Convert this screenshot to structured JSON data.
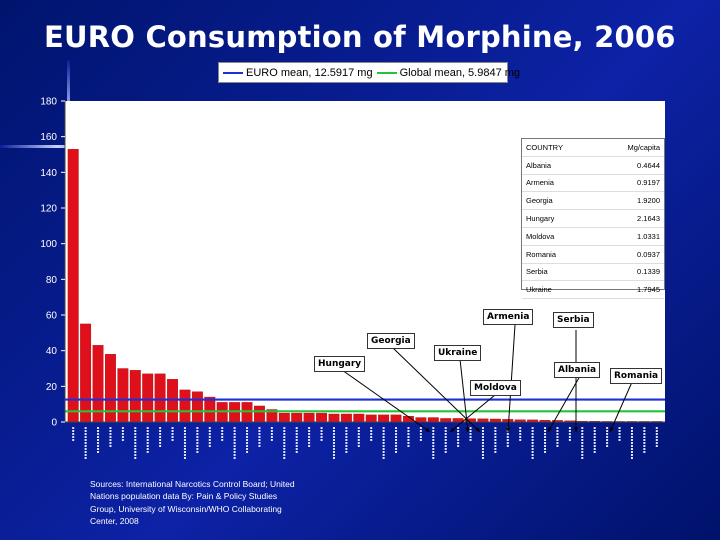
{
  "title": "EURO Consumption of Morphine, 2006",
  "legend": {
    "euro_label": "EURO mean, 12.5917 mg",
    "global_label": "Global mean, 5.9847 mg",
    "euro_color": "#1f2fd6",
    "global_color": "#22c43a"
  },
  "chart_data": {
    "type": "bar",
    "title": "EURO Consumption of Morphine, 2006",
    "xlabel": "",
    "ylabel": "",
    "ylim": [
      0,
      180
    ],
    "yticks": [
      0,
      20,
      40,
      60,
      80,
      100,
      120,
      140,
      160,
      180
    ],
    "grid": false,
    "bar_color": "#e0101a",
    "values": [
      153,
      55,
      43,
      38,
      30,
      29,
      27,
      27,
      24,
      18,
      17,
      14,
      11,
      11,
      11,
      9,
      7,
      5,
      5,
      5,
      5,
      4.5,
      4.5,
      4.5,
      4,
      4,
      4,
      3.3,
      2.5,
      2.5,
      2,
      2,
      1.9,
      1.8,
      1.7,
      1.5,
      1.3,
      1.2,
      1.0,
      0.9,
      0.7,
      0.5,
      0.46,
      0.3,
      0.2,
      0.13,
      0.09,
      0.05
    ],
    "reference_lines": [
      {
        "name": "EURO mean",
        "value": 12.5917,
        "color": "#1f2fd6"
      },
      {
        "name": "Global mean",
        "value": 5.9847,
        "color": "#22c43a"
      }
    ]
  },
  "table": {
    "headers": [
      "COUNTRY",
      "Mg/capita"
    ],
    "rows": [
      [
        "Albania",
        "0.4644"
      ],
      [
        "Armenia",
        "0.9197"
      ],
      [
        "Georgia",
        "1.9200"
      ],
      [
        "Hungary",
        "2.1643"
      ],
      [
        "Moldova",
        "1.0331"
      ],
      [
        "Romania",
        "0.0937"
      ],
      [
        "Serbia",
        "0.1339"
      ],
      [
        "Ukraine",
        "1.7945"
      ]
    ]
  },
  "callouts": {
    "armenia": "Armenia",
    "georgia": "Georgia",
    "hungary": "Hungary",
    "ukraine": "Ukraine",
    "moldova": "Moldova",
    "serbia": "Serbia",
    "albania": "Albania",
    "romania": "Romania"
  },
  "sources": "Sources:  International Narcotics Control Board; United Nations population data By: Pain & Policy Studies Group, University of Wisconsin/WHO Collaborating Center, 2008"
}
